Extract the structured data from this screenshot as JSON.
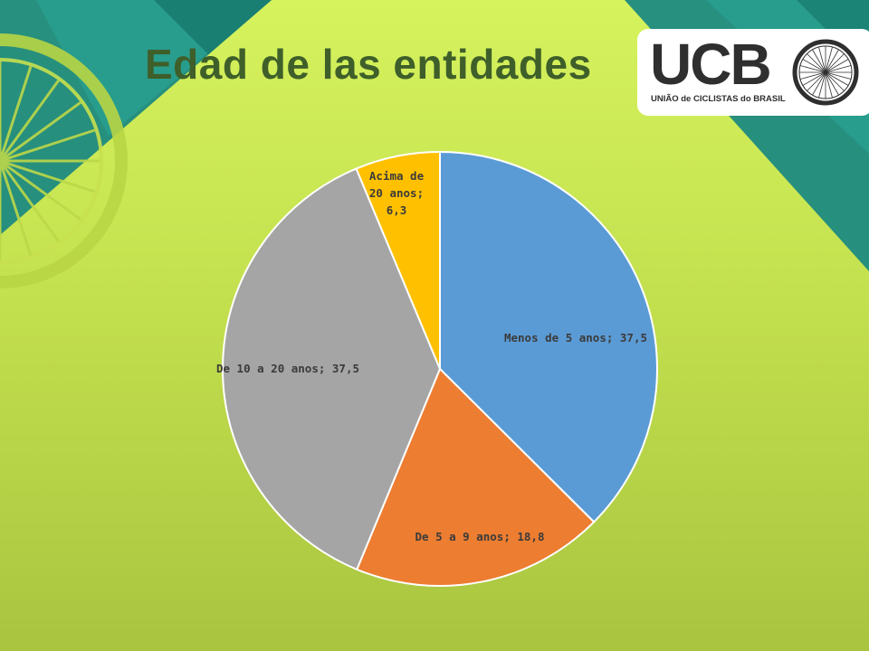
{
  "slide": {
    "title": "Edad de las entidades",
    "logo": {
      "wordmark": "UCB",
      "tagline": "UNIÃO de CICLISTAS do BRASIL",
      "icon": "bicycle-wheel-icon"
    },
    "decor_icon": "bicycle-wheel-icon",
    "colors": {
      "background": "#cde852",
      "title": "#3f5f2a",
      "teal": "#1f8c80"
    }
  },
  "chart_data": {
    "type": "pie",
    "title": "",
    "categories": [
      "Menos de 5 anos",
      "De 5 a 9 anos",
      "De 10 a 20 anos",
      "Acima de 20 anos"
    ],
    "values": [
      37.5,
      18.8,
      37.5,
      6.3
    ],
    "labels": [
      "Menos de 5 anos; 37,5",
      "De 5 a 9 anos; 18,8",
      "De 10 a 20 anos; 37,5",
      [
        "Acima de",
        "20 anos;",
        "6,3"
      ]
    ],
    "colors": [
      "#5b9bd5",
      "#ed7d31",
      "#a5a5a5",
      "#ffc000"
    ],
    "start": "12 o'clock, clockwise",
    "legend": "none (data labels)"
  }
}
